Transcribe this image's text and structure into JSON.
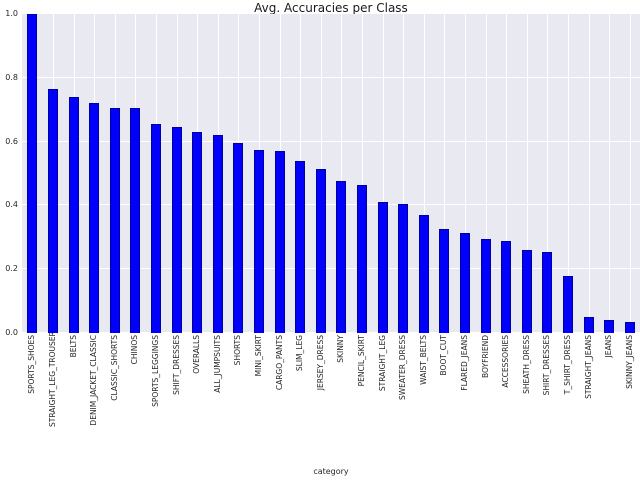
{
  "chart_data": {
    "type": "bar",
    "title": "Avg. Accuracies per Class",
    "xlabel": "category",
    "ylabel": "",
    "ylim": [
      0.0,
      1.0
    ],
    "yticks": [
      0.0,
      0.2,
      0.4,
      0.6,
      0.8,
      1.0
    ],
    "grid": true,
    "legend": "none",
    "plot_bg_color": "#E9E9F2",
    "grid_color": "#FFFFFF",
    "bar_color": "#0000FB",
    "bar_edge_color": "#0000A0",
    "categories": [
      "SPORTS_SHOES",
      "STRAIGHT_LEG_TROUSERS",
      "BELTS",
      "DENIM_JACKET_CLASSIC",
      "CLASSIC_SHORTS",
      "CHINOS",
      "SPORTS_LEGGINGS",
      "SHIFT_DRESSES",
      "OVERALLS",
      "ALL_JUMPSUITS",
      "SHORTS",
      "MINI_SKIRT",
      "CARGO_PANTS",
      "SLIM_LEG",
      "JERSEY_DRESS",
      "SKINNY",
      "PENCIL_SKIRT",
      "STRAIGHT_LEG",
      "SWEATER_DRESS",
      "WAIST_BELTS",
      "BOOT_CUT",
      "FLARED_JEANS",
      "BOYFRIEND",
      "ACCESSORIES",
      "SHEATH_DRESS",
      "SHIRT_DRESSES",
      "T_SHIRT_DRESS",
      "STRAIGHT_JEANS",
      "JEANS",
      "SKINNY_JEANS"
    ],
    "values": [
      1.0,
      0.765,
      0.74,
      0.72,
      0.705,
      0.705,
      0.655,
      0.645,
      0.63,
      0.62,
      0.595,
      0.575,
      0.57,
      0.54,
      0.515,
      0.475,
      0.465,
      0.41,
      0.405,
      0.37,
      0.325,
      0.315,
      0.295,
      0.29,
      0.26,
      0.255,
      0.18,
      0.05,
      0.04,
      0.035
    ]
  }
}
